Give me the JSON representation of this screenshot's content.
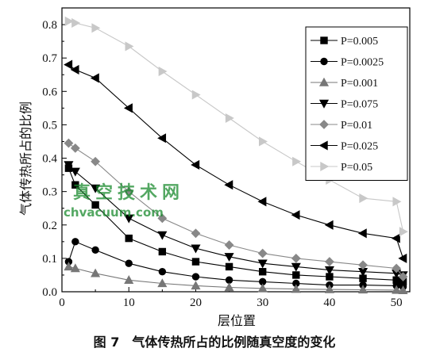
{
  "chart_data": {
    "type": "line",
    "title": "",
    "caption": "图 7　气体传热所占的比例随真空度的变化",
    "xlabel": "层位置",
    "ylabel": "气体传热所占的比例",
    "xlim": [
      0,
      52
    ],
    "ylim": [
      0,
      0.85
    ],
    "xticks": [
      0,
      10,
      20,
      30,
      40,
      50
    ],
    "yticks": [
      0.0,
      0.1,
      0.2,
      0.3,
      0.4,
      0.5,
      0.6,
      0.7,
      0.8
    ],
    "legend_position": "top-right",
    "series": [
      {
        "name": "P=0.005",
        "marker": "square",
        "color": "#000000",
        "x": [
          1,
          2,
          5,
          10,
          15,
          20,
          25,
          30,
          35,
          40,
          45,
          50,
          51
        ],
        "y": [
          0.37,
          0.32,
          0.26,
          0.16,
          0.12,
          0.09,
          0.075,
          0.06,
          0.05,
          0.045,
          0.04,
          0.035,
          0.03
        ]
      },
      {
        "name": "P=0.0025",
        "marker": "circle",
        "color": "#000000",
        "x": [
          1,
          2,
          5,
          10,
          15,
          20,
          25,
          30,
          35,
          40,
          45,
          50,
          51
        ],
        "y": [
          0.09,
          0.15,
          0.125,
          0.085,
          0.06,
          0.045,
          0.035,
          0.03,
          0.025,
          0.02,
          0.02,
          0.018,
          0.015
        ]
      },
      {
        "name": "P=0.001",
        "marker": "triangle-up",
        "color": "#777777",
        "x": [
          1,
          2,
          5,
          10,
          15,
          20,
          25,
          30,
          35,
          40,
          45,
          50,
          51
        ],
        "y": [
          0.075,
          0.07,
          0.055,
          0.035,
          0.025,
          0.018,
          0.013,
          0.01,
          0.008,
          0.007,
          0.006,
          0.005,
          0.004
        ]
      },
      {
        "name": "P=0.075",
        "marker": "triangle-down",
        "color": "#000000",
        "x": [
          1,
          2,
          5,
          10,
          15,
          20,
          25,
          30,
          35,
          40,
          45,
          50,
          51
        ],
        "y": [
          0.38,
          0.36,
          0.31,
          0.22,
          0.17,
          0.13,
          0.105,
          0.085,
          0.075,
          0.065,
          0.06,
          0.055,
          0.05
        ]
      },
      {
        "name": "P=0.01",
        "marker": "diamond",
        "color": "#888888",
        "x": [
          1,
          2,
          5,
          10,
          15,
          20,
          25,
          30,
          35,
          40,
          45,
          50,
          51
        ],
        "y": [
          0.445,
          0.43,
          0.39,
          0.3,
          0.22,
          0.175,
          0.14,
          0.115,
          0.1,
          0.09,
          0.08,
          0.07,
          0.045
        ]
      },
      {
        "name": "P=0.025",
        "marker": "triangle-left",
        "color": "#000000",
        "x": [
          1,
          2,
          5,
          10,
          15,
          20,
          25,
          30,
          35,
          40,
          45,
          50,
          51
        ],
        "y": [
          0.68,
          0.665,
          0.64,
          0.55,
          0.46,
          0.38,
          0.32,
          0.27,
          0.23,
          0.2,
          0.175,
          0.16,
          0.1
        ]
      },
      {
        "name": "P=0.05",
        "marker": "triangle-right",
        "color": "#c8c8c8",
        "x": [
          1,
          2,
          5,
          10,
          15,
          20,
          25,
          30,
          35,
          40,
          45,
          50,
          51
        ],
        "y": [
          0.81,
          0.805,
          0.79,
          0.735,
          0.66,
          0.59,
          0.52,
          0.45,
          0.39,
          0.335,
          0.28,
          0.27,
          0.18
        ]
      }
    ]
  },
  "watermark": {
    "line1": "真空技术网",
    "line2": "chvacuum.com",
    "color": "#1a8a2e"
  }
}
